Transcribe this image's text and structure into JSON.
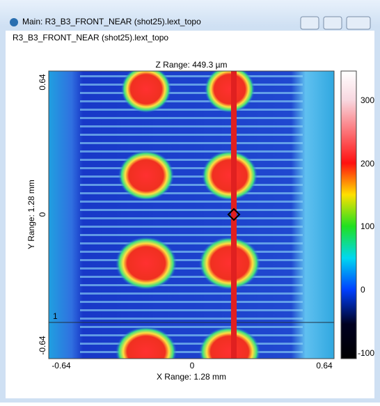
{
  "window": {
    "title": "Main: R3_B3_FRONT_NEAR (shot25).lext_topo"
  },
  "header": "R3_B3_FRONT_NEAR (shot25).lext_topo",
  "plot": {
    "z_range": "Z Range: 449.3 µm",
    "x_label": "X Range: 1.28 mm",
    "y_label": "Y Range: 1.28 mm",
    "xticks": [
      "-0.64",
      "0",
      "0.64"
    ],
    "yticks": [
      "0.64",
      "0",
      "-0.64"
    ],
    "colorbar_ticks": [
      "300",
      "200",
      "100",
      "0",
      "-100"
    ],
    "cursor_label": "1"
  }
}
